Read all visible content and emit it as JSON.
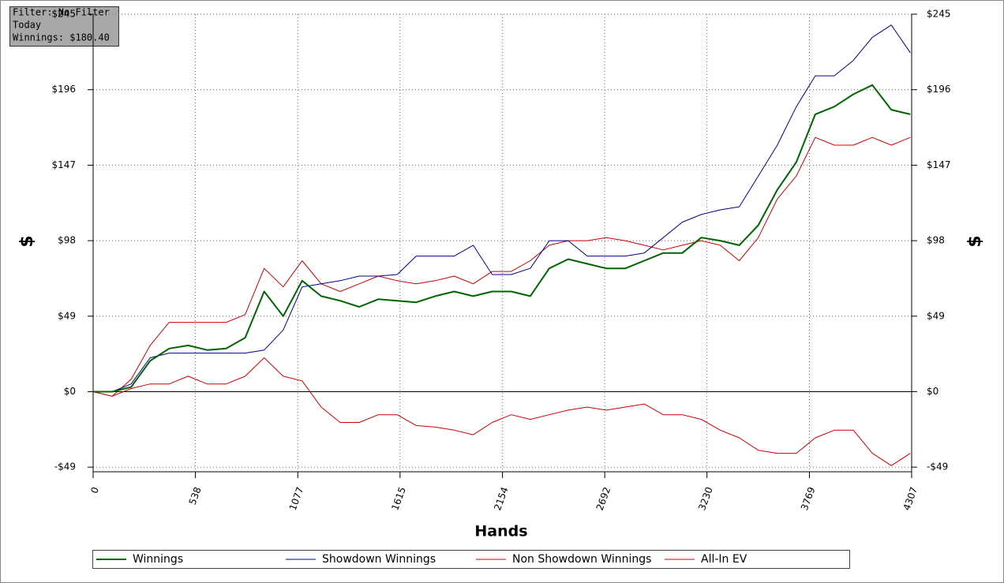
{
  "chart_data": {
    "type": "line",
    "annotations": [
      "Filter: No Filter",
      "Today",
      "Winnings: $180.40"
    ],
    "x_label": "Hands",
    "y_label": "$",
    "x": [
      0,
      100,
      200,
      300,
      400,
      500,
      600,
      700,
      800,
      900,
      1000,
      1100,
      1200,
      1300,
      1400,
      1500,
      1600,
      1700,
      1800,
      1900,
      2000,
      2100,
      2200,
      2300,
      2400,
      2500,
      2600,
      2700,
      2800,
      2900,
      3000,
      3100,
      3200,
      3300,
      3400,
      3500,
      3600,
      3700,
      3800,
      3900,
      4000,
      4100,
      4200,
      4300
    ],
    "series": [
      {
        "name": "Winnings",
        "color": "#006400",
        "width": 2,
        "values": [
          0,
          0,
          3,
          20,
          28,
          30,
          27,
          28,
          35,
          65,
          49,
          72,
          62,
          59,
          55,
          60,
          59,
          58,
          62,
          65,
          62,
          65,
          65,
          62,
          80,
          86,
          83,
          80,
          80,
          85,
          90,
          90,
          100,
          98,
          95,
          108,
          131,
          149,
          180,
          185,
          193,
          199,
          183,
          180
        ]
      },
      {
        "name": "Showdown Winnings",
        "color": "#00008b",
        "width": 1,
        "values": [
          0,
          0,
          5,
          22,
          25,
          25,
          25,
          25,
          25,
          27,
          40,
          68,
          70,
          72,
          75,
          75,
          76,
          88,
          88,
          88,
          95,
          76,
          76,
          80,
          98,
          98,
          88,
          88,
          88,
          90,
          100,
          110,
          115,
          118,
          120,
          140,
          160,
          185,
          205,
          205,
          215,
          230,
          238,
          220
        ]
      },
      {
        "name": "Non Showdown Winnings",
        "color": "#cc0000",
        "width": 1,
        "values": [
          0,
          -3,
          8,
          30,
          45,
          45,
          45,
          45,
          50,
          80,
          68,
          85,
          70,
          65,
          70,
          75,
          72,
          70,
          72,
          75,
          70,
          78,
          78,
          85,
          95,
          98,
          98,
          100,
          98,
          95,
          92,
          95,
          98,
          95,
          85,
          100,
          125,
          140,
          165,
          160,
          160,
          165,
          160,
          165
        ]
      },
      {
        "name": "All-In EV",
        "color": "#cc0000",
        "width": 1,
        "values": [
          0,
          -3,
          2,
          5,
          5,
          10,
          5,
          5,
          10,
          22,
          10,
          7,
          -10,
          -20,
          -20,
          -15,
          -15,
          -22,
          -23,
          -25,
          -28,
          -20,
          -15,
          -18,
          -15,
          -12,
          -10,
          -12,
          -10,
          -8,
          -15,
          -15,
          -18,
          -25,
          -30,
          -38,
          -40,
          -40,
          -30,
          -25,
          -25,
          -40,
          -48,
          -40
        ]
      }
    ],
    "xlim": [
      0,
      4307
    ],
    "xticks": [
      0,
      538,
      1077,
      1615,
      2154,
      2692,
      3230,
      3769,
      4307
    ],
    "ylim": [
      -52,
      245
    ],
    "yticks": [
      {
        "value": -49,
        "label": "-$49"
      },
      {
        "value": 0,
        "label": "$0"
      },
      {
        "value": 49,
        "label": "$49"
      },
      {
        "value": 98,
        "label": "$98"
      },
      {
        "value": 147,
        "label": "$147"
      },
      {
        "value": 196,
        "label": "$196"
      },
      {
        "value": 245,
        "label": "$245"
      }
    ],
    "grid": true
  }
}
